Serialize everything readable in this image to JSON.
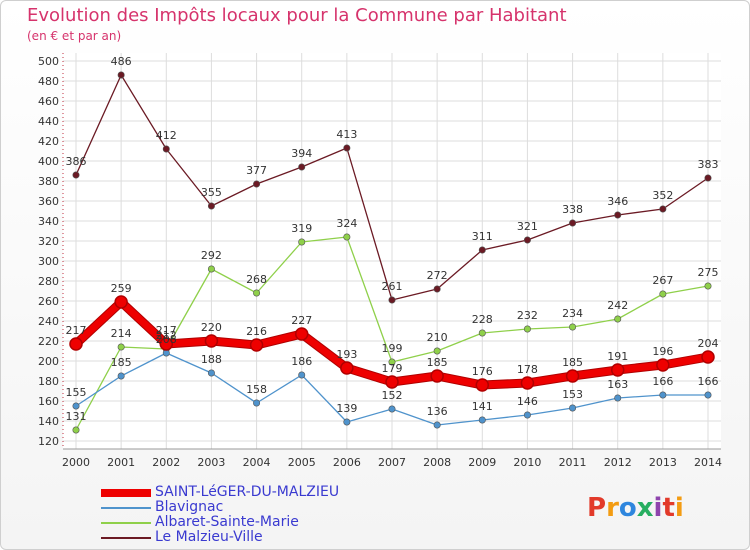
{
  "title": "Evolution des Impôts locaux pour la Commune par Habitant",
  "subtitle": "(en € et par an)",
  "logo": {
    "text": "Proxiti",
    "colors": [
      "#e23a2a",
      "#f39c12",
      "#2e86de",
      "#27ae60",
      "#8e44ad",
      "#e23a2a",
      "#f39c12"
    ]
  },
  "chart_data": {
    "type": "line",
    "x": [
      "2000",
      "2001",
      "2002",
      "2003",
      "2004",
      "2005",
      "2006",
      "2007",
      "2008",
      "2009",
      "2010",
      "2011",
      "2012",
      "2013",
      "2014"
    ],
    "ylim": [
      120,
      500
    ],
    "yticks": [
      120,
      140,
      160,
      180,
      200,
      220,
      240,
      260,
      280,
      300,
      320,
      340,
      360,
      380,
      400,
      420,
      440,
      460,
      480,
      500
    ],
    "grid": true,
    "legend_position": "bottom-left",
    "series": [
      {
        "name": "Le Malzieu-Ville",
        "color": "#6b1a24",
        "width": 1.3,
        "values": [
          386,
          486,
          412,
          355,
          377,
          394,
          413,
          261,
          272,
          311,
          321,
          338,
          346,
          352,
          383
        ]
      },
      {
        "name": "Albaret-Sainte-Marie",
        "color": "#8fd04a",
        "width": 1.3,
        "values": [
          131,
          214,
          212,
          292,
          268,
          319,
          324,
          199,
          210,
          228,
          232,
          234,
          242,
          267,
          275
        ]
      },
      {
        "name": "Blavignac",
        "color": "#4f93cc",
        "width": 1.3,
        "values": [
          155,
          185,
          208,
          188,
          158,
          186,
          139,
          152,
          136,
          141,
          146,
          153,
          163,
          166,
          166
        ]
      },
      {
        "name": "SAINT-LéGER-DU-MALZIEU",
        "color": "#ee0000",
        "width": 7,
        "values": [
          217,
          259,
          217,
          220,
          216,
          227,
          193,
          179,
          185,
          176,
          178,
          185,
          191,
          196,
          204
        ]
      }
    ],
    "legend_order": [
      "SAINT-LéGER-DU-MALZIEU",
      "Blavignac",
      "Albaret-Sainte-Marie",
      "Le Malzieu-Ville"
    ]
  }
}
